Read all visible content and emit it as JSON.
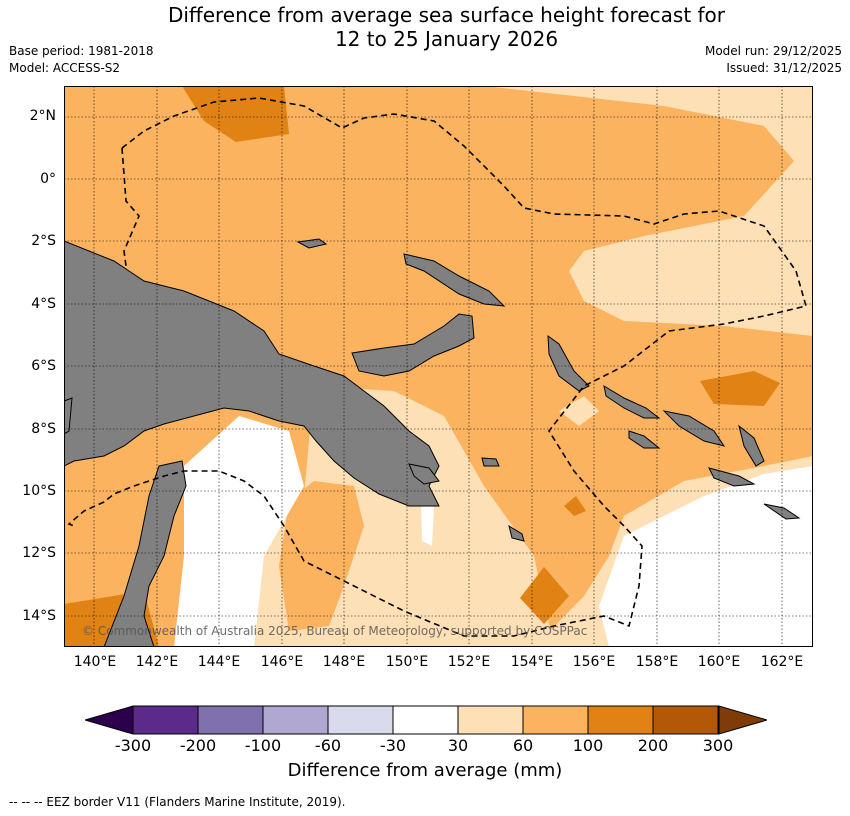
{
  "title_line1": "Difference from average sea surface height forecast for",
  "title_line2": "12 to 25 January 2026",
  "base_period": "Base period: 1981-2018",
  "model": "Model: ACCESS-S2",
  "model_run": "Model run: 29/12/2025",
  "issued": "Issued: 31/12/2025",
  "lat_labels": [
    "2°N",
    "0°",
    "2°S",
    "4°S",
    "6°S",
    "8°S",
    "10°S",
    "12°S",
    "14°S"
  ],
  "lon_labels": [
    "140°E",
    "142°E",
    "144°E",
    "146°E",
    "148°E",
    "150°E",
    "152°E",
    "154°E",
    "156°E",
    "158°E",
    "160°E",
    "162°E"
  ],
  "copyright": "© Commonwealth of Australia 2025, Bureau of Meteorology, supported by COSPPac",
  "colorbar": {
    "ticks": [
      "-300",
      "-200",
      "-100",
      "-60",
      "-30",
      "30",
      "60",
      "100",
      "200",
      "300"
    ],
    "colors": [
      "#5b2a8a",
      "#8170ae",
      "#b1a8d2",
      "#d9dbec",
      "#ffffff",
      "#fee0b6",
      "#fbb360",
      "#e08214",
      "#b35806"
    ],
    "under_color": "#2d004b",
    "over_color": "#7f3b08",
    "title": "Difference from average (mm)"
  },
  "footer": "--  --  -- EEZ border V11 (Flanders Marine Institute, 2019).",
  "colors": {
    "land": "#808080",
    "ocean_default": "#fbb360"
  }
}
